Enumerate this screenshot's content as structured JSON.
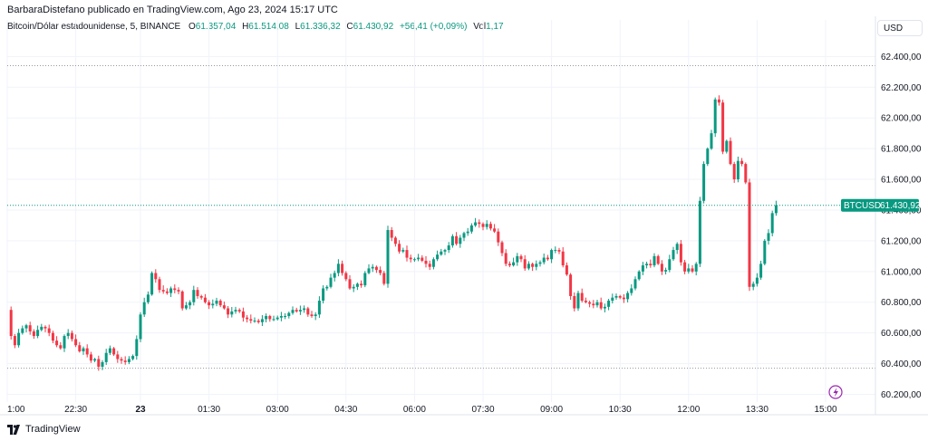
{
  "header": {
    "published_line": "BarbaraDistefano publicado en TradingView.com, Ago 23, 2024 15:17 UTC"
  },
  "legend": {
    "symbol": "Bitcoin/Dólar estadounidense, 5, BINANCE",
    "open_label": "O",
    "open": "61.357,04",
    "high_label": "H",
    "high": "61.514,08",
    "low_label": "L",
    "low": "61.336,32",
    "close_label": "C",
    "close": "61.430,92",
    "change": "+56,41 (+0,09%)",
    "vol_label": "Vol",
    "vol": "1,17"
  },
  "currency_button": "USD",
  "price_tag": {
    "symbol": "BTCUSD",
    "value": "61.430,92"
  },
  "brand": "TradingView",
  "colors": {
    "up": "#089981",
    "down": "#f23645",
    "grid": "#f0f3fa",
    "axis": "#e0e3eb",
    "price_line": "#089981"
  },
  "icons": {
    "bolt": "lightning-bolt-icon",
    "logo": "tradingview-logo-icon"
  },
  "chart_data": {
    "type": "candlestick",
    "title": "Bitcoin/Dólar estadounidense, 5, BINANCE",
    "ylim": [
      60150,
      62520
    ],
    "y_ticks": [
      62400,
      62200,
      62000,
      61800,
      61600,
      61400,
      61200,
      61000,
      60800,
      60600,
      60400,
      60200
    ],
    "y_tick_labels": [
      "62.400,00",
      "62.200,00",
      "62.000,00",
      "61.800,00",
      "61.600,00",
      "61.400,00",
      "61.200,00",
      "61.000,00",
      "60.800,00",
      "60.600,00",
      "60.400,00",
      "60.200,00"
    ],
    "x_tick_labels": [
      "1:00",
      "22:30",
      "23",
      "01:30",
      "03:00",
      "04:30",
      "06:00",
      "07:30",
      "09:00",
      "10:30",
      "12:00",
      "13:30",
      "15:00"
    ],
    "x_tick_index": [
      0,
      18,
      35,
      53,
      71,
      89,
      107,
      125,
      143,
      161,
      179,
      197,
      215
    ],
    "bold_tick_labels": [
      "23"
    ],
    "dotted_levels": [
      62340,
      60370
    ],
    "last_price": 61430.92,
    "gap_after_index": 115,
    "closes": [
      60750,
      60580,
      60520,
      60600,
      60630,
      60650,
      60610,
      60580,
      60620,
      60640,
      60630,
      60600,
      60550,
      60520,
      60500,
      60580,
      60600,
      60560,
      60520,
      60480,
      60500,
      60460,
      60420,
      60430,
      60380,
      60410,
      60470,
      60500,
      60460,
      60430,
      60420,
      60410,
      60430,
      60450,
      60560,
      60720,
      60800,
      60850,
      60990,
      60950,
      60880,
      60870,
      60860,
      60890,
      60880,
      60870,
      60760,
      60780,
      60800,
      60880,
      60840,
      60830,
      60800,
      60780,
      60790,
      60810,
      60780,
      60760,
      60720,
      60740,
      60750,
      60740,
      60700,
      60690,
      60680,
      60680,
      60670,
      60690,
      60710,
      60690,
      60690,
      60700,
      60710,
      60710,
      60730,
      60750,
      60740,
      60750,
      60760,
      60720,
      60710,
      60720,
      60810,
      60890,
      60900,
      60960,
      60990,
      61050,
      60990,
      60950,
      60890,
      60900,
      60920,
      60910,
      60990,
      61020,
      61030,
      61010,
      60990,
      60920,
      61270,
      61220,
      61180,
      61130,
      61140,
      61090,
      61080,
      61080,
      61090,
      61070,
      61050,
      61030,
      61080,
      61110,
      61130,
      61140,
      61170,
      61230,
      61180,
      61220,
      61250,
      61260,
      61300,
      61320,
      61310,
      61290,
      61310,
      61280,
      61260,
      61190,
      61120,
      61050,
      61040,
      61060,
      61100,
      61080,
      61020,
      61050,
      61030,
      61050,
      61060,
      61090,
      61080,
      61140,
      61140,
      61130,
      61040,
      60980,
      60840,
      60760,
      60860,
      60810,
      60800,
      60790,
      60780,
      60800,
      60760,
      60770,
      60810,
      60830,
      60840,
      60830,
      60820,
      60860,
      60890,
      60950,
      61000,
      61040,
      61050,
      61040,
      61100,
      61050,
      61000,
      61010,
      61080,
      61140,
      61180,
      61060,
      61000,
      61020,
      61000,
      61050,
      61460,
      61700,
      61800,
      61900,
      62120,
      62100,
      61780,
      61850,
      61700,
      61600,
      61720,
      61700,
      61580,
      60900,
      60920,
      60960,
      61050,
      61200,
      61250,
      61380,
      61430.92
    ]
  }
}
